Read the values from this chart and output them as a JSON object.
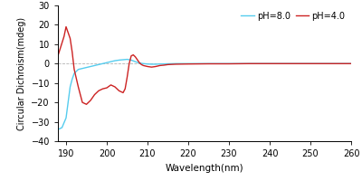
{
  "title": "",
  "xlabel": "Wavelength(nm)",
  "ylabel": "Circular Dichroism(mdeg)",
  "xlim": [
    188,
    260
  ],
  "ylim": [
    -40,
    30
  ],
  "xticks": [
    190,
    200,
    210,
    220,
    230,
    240,
    250,
    260
  ],
  "yticks": [
    -40,
    -30,
    -20,
    -10,
    0,
    10,
    20,
    30
  ],
  "ph8_x": [
    188.0,
    189.0,
    190.0,
    191.0,
    191.5,
    192.0,
    193.0,
    194.0,
    195.0,
    196.0,
    197.0,
    198.0,
    199.0,
    200.0,
    201.0,
    202.0,
    203.0,
    204.0,
    205.0,
    206.0,
    207.0,
    208.0,
    209.0,
    210.0,
    211.0,
    212.0,
    213.0,
    215.0,
    217.0,
    220.0,
    225.0,
    230.0,
    235.0,
    240.0,
    245.0,
    250.0,
    255.0,
    260.0
  ],
  "ph8_y": [
    -34.0,
    -33.0,
    -28.0,
    -12.0,
    -8.0,
    -5.0,
    -3.0,
    -2.5,
    -2.0,
    -1.5,
    -1.0,
    -0.5,
    0.0,
    0.5,
    1.0,
    1.5,
    1.8,
    2.0,
    2.2,
    1.8,
    1.0,
    0.3,
    0.0,
    -0.2,
    -0.3,
    -0.3,
    -0.2,
    -0.1,
    0.0,
    0.0,
    0.0,
    0.0,
    0.0,
    0.0,
    0.0,
    0.0,
    0.0,
    0.0
  ],
  "ph4_x": [
    188.0,
    189.5,
    190.0,
    191.0,
    191.5,
    192.0,
    193.0,
    194.0,
    195.0,
    196.0,
    197.0,
    198.0,
    199.0,
    200.0,
    201.0,
    202.0,
    203.0,
    204.0,
    204.5,
    205.0,
    205.5,
    206.0,
    206.5,
    207.0,
    207.5,
    208.0,
    208.5,
    209.0,
    210.0,
    211.0,
    212.0,
    213.0,
    214.0,
    215.0,
    217.0,
    220.0,
    225.0,
    230.0,
    235.0,
    240.0,
    245.0,
    250.0,
    255.0,
    260.0
  ],
  "ph4_y": [
    4.0,
    14.0,
    19.0,
    13.0,
    6.0,
    -3.0,
    -12.0,
    -20.0,
    -21.0,
    -19.0,
    -16.0,
    -14.0,
    -13.0,
    -12.5,
    -11.0,
    -12.0,
    -14.0,
    -15.0,
    -13.0,
    -7.0,
    0.0,
    4.0,
    4.5,
    3.5,
    2.0,
    0.5,
    -0.5,
    -1.0,
    -1.5,
    -1.8,
    -1.5,
    -1.0,
    -0.8,
    -0.5,
    -0.3,
    -0.2,
    -0.1,
    -0.1,
    0.0,
    0.0,
    0.0,
    0.0,
    0.0,
    0.0
  ],
  "color_ph8": "#55ccee",
  "color_ph4": "#cc2222",
  "legend_labels": [
    "pH=8.0",
    "pH=4.0"
  ],
  "linewidth": 1.0,
  "bg_color": "#ffffff"
}
